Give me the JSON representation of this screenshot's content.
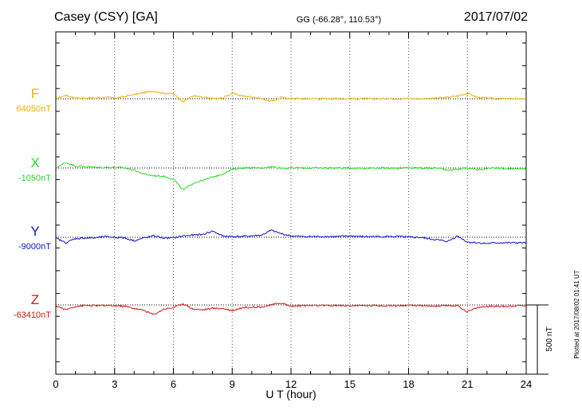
{
  "header": {
    "station": "Casey (CSY)  [GA]",
    "coords": "GG (-66.28°, 110.53°)",
    "date": "2017/07/02"
  },
  "plotted_note": "Plotted at 2017/08/02 01:41 UT",
  "scale_label": "500 nT",
  "colors": {
    "F": "#f0b000",
    "X": "#22dd22",
    "Y": "#1010cc",
    "Z": "#dd1111"
  },
  "chart_data": {
    "type": "line",
    "xlabel": "U T (hour)",
    "xlim": [
      0,
      24
    ],
    "x_ticks": [
      0,
      3,
      6,
      9,
      12,
      15,
      18,
      21,
      24
    ],
    "minor_tick_step": 1,
    "grid": "dotted vertical every 3 hours; dotted baseline per component",
    "scale_bar_nT": 500,
    "x": [
      0,
      0.5,
      1,
      1.5,
      2,
      2.5,
      3,
      3.5,
      4,
      4.5,
      5,
      5.5,
      6,
      6.5,
      7,
      7.5,
      8,
      8.5,
      9,
      9.5,
      10,
      10.5,
      11,
      11.5,
      12,
      12.5,
      13,
      13.5,
      14,
      14.5,
      15,
      15.5,
      16,
      16.5,
      17,
      17.5,
      18,
      18.5,
      19,
      19.5,
      20,
      20.5,
      21,
      21.5,
      22,
      22.5,
      23,
      23.5,
      24
    ],
    "series": [
      {
        "name": "F",
        "baseline_label": "64050nT",
        "values_nT": [
          0,
          25,
          5,
          5,
          5,
          10,
          5,
          15,
          30,
          45,
          55,
          40,
          35,
          -20,
          20,
          10,
          0,
          5,
          40,
          20,
          15,
          0,
          -20,
          10,
          0,
          0,
          0,
          0,
          0,
          0,
          0,
          0,
          0,
          0,
          0,
          0,
          0,
          0,
          0,
          5,
          10,
          20,
          40,
          10,
          5,
          0,
          0,
          0,
          0
        ]
      },
      {
        "name": "X",
        "baseline_label": "-1050nT",
        "values_nT": [
          0,
          40,
          15,
          10,
          5,
          5,
          5,
          0,
          -15,
          -45,
          -55,
          -60,
          -80,
          -160,
          -110,
          -90,
          -65,
          -45,
          -10,
          0,
          0,
          0,
          10,
          0,
          0,
          0,
          0,
          0,
          0,
          0,
          0,
          0,
          0,
          0,
          0,
          0,
          0,
          0,
          0,
          0,
          -15,
          -10,
          0,
          -10,
          -5,
          0,
          -5,
          -5,
          -5
        ]
      },
      {
        "name": "Y",
        "baseline_label": "-9000nT",
        "values_nT": [
          -5,
          -40,
          -10,
          -5,
          -5,
          5,
          0,
          -5,
          -25,
          -5,
          10,
          -5,
          -5,
          10,
          15,
          20,
          45,
          10,
          5,
          5,
          10,
          15,
          50,
          25,
          10,
          5,
          5,
          5,
          5,
          5,
          10,
          5,
          5,
          5,
          5,
          5,
          0,
          0,
          -10,
          -20,
          -30,
          10,
          -35,
          -40,
          -45,
          -40,
          -40,
          -40,
          -40
        ]
      },
      {
        "name": "Z",
        "baseline_label": "-63410nT",
        "values_nT": [
          -5,
          -35,
          -10,
          -5,
          -5,
          -5,
          -5,
          -10,
          -25,
          -40,
          -70,
          -30,
          -20,
          10,
          -30,
          -35,
          -25,
          -25,
          -40,
          -20,
          -15,
          -15,
          0,
          15,
          -10,
          -5,
          -5,
          -5,
          -5,
          -5,
          -5,
          -5,
          -5,
          -5,
          -5,
          -5,
          -5,
          -5,
          -5,
          -10,
          -5,
          -5,
          -50,
          -20,
          -10,
          -10,
          -10,
          -5,
          -5
        ]
      }
    ]
  }
}
